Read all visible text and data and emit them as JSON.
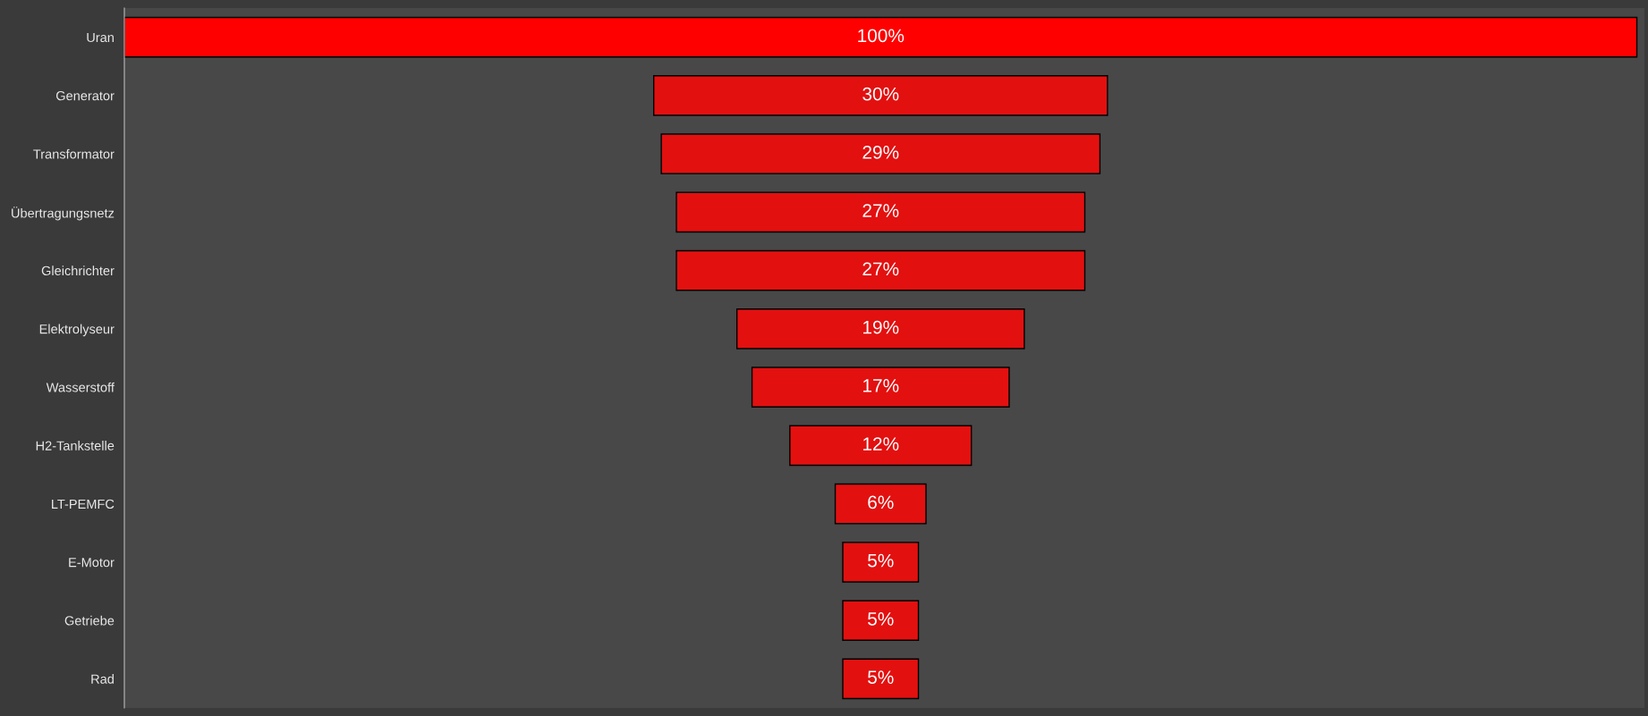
{
  "chart_data": {
    "type": "other",
    "categories": [
      "Uran",
      "Generator",
      "Transformator",
      "Übertragungsnetz",
      "Gleichrichter",
      "Elektrolyseur",
      "Wasserstoff",
      "H2-Tankstelle",
      "LT-PEMFC",
      "E-Motor",
      "Getriebe",
      "Rad"
    ],
    "values": [
      100,
      30,
      29,
      27,
      27,
      19,
      17,
      12,
      6,
      5,
      5,
      5
    ],
    "value_labels": [
      "100%",
      "30%",
      "29%",
      "27%",
      "27%",
      "19%",
      "17%",
      "12%",
      "6%",
      "5%",
      "5%",
      "5%"
    ],
    "colors": [
      "#ff0000",
      "#e31010",
      "#e31010",
      "#e31010",
      "#e31010",
      "#e31010",
      "#e31010",
      "#e31010",
      "#e31010",
      "#e31010",
      "#e31010",
      "#e31010"
    ]
  }
}
